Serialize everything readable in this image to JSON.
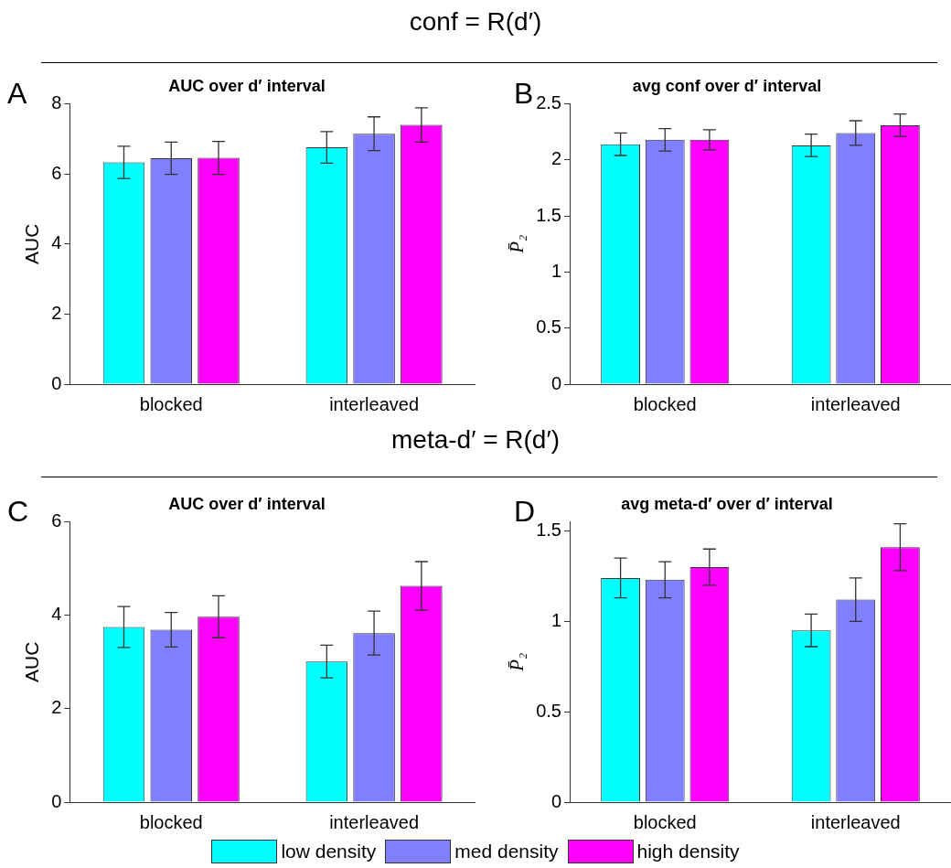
{
  "chart_data": [
    {
      "type": "bar",
      "title": "AUC over d′ interval",
      "ylabel": "AUC",
      "categories": [
        "blocked",
        "interleaved"
      ],
      "ylim": [
        0,
        8
      ],
      "yticks": [
        0,
        2,
        4,
        6,
        8
      ],
      "annotations": [
        "conf = R(d′)",
        "A"
      ],
      "series": [
        {
          "color": "#00ffff",
          "values": [
            6.33,
            6.76
          ],
          "errors": [
            0.46,
            0.45
          ]
        },
        {
          "color": "#7f7fff",
          "values": [
            6.45,
            7.15
          ],
          "errors": [
            0.46,
            0.48
          ]
        },
        {
          "color": "#ff00ff",
          "values": [
            6.46,
            7.4
          ],
          "errors": [
            0.47,
            0.49
          ]
        }
      ]
    },
    {
      "type": "bar",
      "title": "avg conf over d′ interval",
      "ylabel": "P̄₂",
      "categories": [
        "blocked",
        "interleaved"
      ],
      "ylim": [
        0,
        2.5
      ],
      "yticks": [
        0,
        0.5,
        1,
        1.5,
        2,
        2.5
      ],
      "annotations": [
        "B"
      ],
      "series": [
        {
          "color": "#00ffff",
          "values": [
            2.14,
            2.13
          ],
          "errors": [
            0.1,
            0.1
          ]
        },
        {
          "color": "#7f7fff",
          "values": [
            2.18,
            2.24
          ],
          "errors": [
            0.1,
            0.11
          ]
        },
        {
          "color": "#ff00ff",
          "values": [
            2.18,
            2.31
          ],
          "errors": [
            0.09,
            0.1
          ]
        }
      ]
    },
    {
      "type": "bar",
      "title": "AUC over d′ interval",
      "ylabel": "AUC",
      "categories": [
        "blocked",
        "interleaved"
      ],
      "ylim": [
        0,
        6
      ],
      "yticks": [
        0,
        2,
        4,
        6
      ],
      "annotations": [
        "meta-d′ = R(d′)",
        "C"
      ],
      "series": [
        {
          "color": "#00ffff",
          "values": [
            3.75,
            3.01
          ],
          "errors": [
            0.44,
            0.35
          ]
        },
        {
          "color": "#7f7fff",
          "values": [
            3.69,
            3.62
          ],
          "errors": [
            0.37,
            0.47
          ]
        },
        {
          "color": "#ff00ff",
          "values": [
            3.97,
            4.63
          ],
          "errors": [
            0.45,
            0.52
          ]
        }
      ]
    },
    {
      "type": "bar",
      "title": "avg meta-d′ over d′ interval",
      "ylabel": "P̄₂",
      "categories": [
        "blocked",
        "interleaved"
      ],
      "ylim": [
        0,
        1.55
      ],
      "yticks": [
        0,
        0.5,
        1,
        1.5
      ],
      "annotations": [
        "D"
      ],
      "legend": "bottom",
      "series": [
        {
          "name": "low density",
          "color": "#00ffff",
          "values": [
            1.24,
            0.95
          ],
          "errors": [
            0.11,
            0.09
          ]
        },
        {
          "name": "med density",
          "color": "#7f7fff",
          "values": [
            1.23,
            1.12
          ],
          "errors": [
            0.1,
            0.12
          ]
        },
        {
          "name": "high density",
          "color": "#ff00ff",
          "values": [
            1.3,
            1.41
          ],
          "errors": [
            0.1,
            0.13
          ]
        }
      ]
    }
  ]
}
